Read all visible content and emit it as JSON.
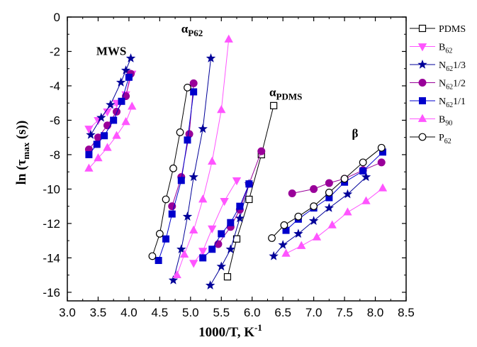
{
  "chart_data": {
    "type": "scatter",
    "xlabel": "1000/T, K",
    "xlabel_sup": "-1",
    "ylabel": "ln (τ",
    "ylabel_sub": "max",
    "ylabel_end": " (s))",
    "xlim": [
      3.0,
      8.5
    ],
    "ylim": [
      -16.5,
      0
    ],
    "xticks": [
      "3.0",
      "3.5",
      "4.0",
      "4.5",
      "5.0",
      "5.5",
      "6.0",
      "6.5",
      "7.0",
      "7.5",
      "8.0",
      "8.5"
    ],
    "yticks": [
      "0",
      "-2",
      "-4",
      "-6",
      "-8",
      "-10",
      "-12",
      "-14",
      "-16"
    ],
    "legend_position": "right",
    "annotations": [
      {
        "base": "MWS",
        "sub": "",
        "x": 3.47,
        "y": -2.2
      },
      {
        "base": "α",
        "sub": "P62",
        "x": 4.85,
        "y": -0.9
      },
      {
        "base": "α",
        "sub": "PDMS",
        "x": 6.28,
        "y": -4.6
      },
      {
        "base": "β",
        "sub": "",
        "x": 7.62,
        "y": -7.0
      }
    ],
    "series": [
      {
        "name": "PDMS",
        "name_sub": "",
        "color": "#000000",
        "marker": "square-open",
        "segments": [
          [
            [
              5.6,
              -15.1
            ],
            [
              5.75,
              -12.9
            ],
            [
              5.95,
              -10.6
            ],
            [
              6.15,
              -8.0
            ],
            [
              6.35,
              -5.15
            ]
          ]
        ]
      },
      {
        "name": "B",
        "name_sub": "62",
        "color": "#ff55ff",
        "marker": "triangle-down",
        "segments": [
          [
            [
              3.35,
              -6.5
            ],
            [
              3.5,
              -6.0
            ],
            [
              3.65,
              -5.5
            ],
            [
              3.8,
              -5.0
            ],
            [
              3.95,
              -4.5
            ],
            [
              4.05,
              -3.3
            ]
          ],
          [
            [
              5.05,
              -14.3
            ],
            [
              5.2,
              -13.6
            ],
            [
              5.35,
              -12.3
            ],
            [
              5.55,
              -10.7
            ],
            [
              5.75,
              -9.5
            ]
          ]
        ]
      },
      {
        "name": "N",
        "name_sub": "62",
        "suffix": "1/3",
        "color": "#000099",
        "marker": "star",
        "segments": [
          [
            [
              3.38,
              -6.85
            ],
            [
              3.55,
              -5.85
            ],
            [
              3.7,
              -5.1
            ],
            [
              3.87,
              -3.8
            ],
            [
              3.95,
              -3.1
            ],
            [
              4.03,
              -2.4
            ]
          ],
          [
            [
              4.72,
              -15.3
            ],
            [
              4.85,
              -13.5
            ],
            [
              4.95,
              -11.6
            ],
            [
              5.05,
              -9.3
            ],
            [
              5.2,
              -6.5
            ],
            [
              5.33,
              -2.4
            ]
          ],
          [
            [
              5.32,
              -15.6
            ],
            [
              5.5,
              -14.5
            ],
            [
              5.65,
              -13.5
            ],
            [
              5.8,
              -11.7
            ],
            [
              5.95,
              -9.7
            ]
          ],
          [
            [
              6.35,
              -13.9
            ],
            [
              6.5,
              -13.25
            ],
            [
              6.75,
              -12.6
            ],
            [
              7.0,
              -11.85
            ],
            [
              7.25,
              -11.1
            ],
            [
              7.55,
              -10.3
            ],
            [
              7.85,
              -9.3
            ]
          ]
        ]
      },
      {
        "name": "N",
        "name_sub": "62",
        "suffix": "1/2",
        "color": "#990099",
        "marker": "circle-filled",
        "segments": [
          [
            [
              3.35,
              -7.7
            ],
            [
              3.5,
              -7.0
            ],
            [
              3.65,
              -6.3
            ],
            [
              3.8,
              -5.5
            ],
            [
              3.95,
              -4.6
            ],
            [
              4.03,
              -3.3
            ]
          ],
          [
            [
              4.7,
              -11.0
            ],
            [
              4.85,
              -9.3
            ],
            [
              4.98,
              -6.8
            ],
            [
              5.05,
              -3.85
            ]
          ],
          [
            [
              5.45,
              -13.2
            ],
            [
              5.65,
              -12.2
            ],
            [
              5.8,
              -11.2
            ],
            [
              5.95,
              -9.7
            ],
            [
              6.15,
              -7.8
            ]
          ],
          [
            [
              6.65,
              -10.25
            ],
            [
              7.0,
              -10.0
            ],
            [
              7.25,
              -9.65
            ],
            [
              7.5,
              -9.4
            ],
            [
              7.8,
              -8.9
            ],
            [
              8.1,
              -8.45
            ]
          ]
        ]
      },
      {
        "name": "N",
        "name_sub": "62",
        "suffix": "1/1",
        "color": "#0000cc",
        "marker": "square-filled",
        "segments": [
          [
            [
              3.35,
              -8.0
            ],
            [
              3.48,
              -7.4
            ],
            [
              3.6,
              -6.9
            ],
            [
              3.75,
              -6.0
            ],
            [
              3.88,
              -4.9
            ],
            [
              4.0,
              -3.5
            ]
          ],
          [
            [
              4.48,
              -14.15
            ],
            [
              4.6,
              -12.9
            ],
            [
              4.7,
              -11.45
            ],
            [
              4.85,
              -9.5
            ],
            [
              4.95,
              -7.15
            ],
            [
              5.05,
              -4.35
            ]
          ],
          [
            [
              5.2,
              -14.0
            ],
            [
              5.35,
              -13.5
            ],
            [
              5.5,
              -12.6
            ],
            [
              5.65,
              -11.95
            ],
            [
              5.8,
              -11.0
            ],
            [
              5.95,
              -9.7
            ]
          ],
          [
            [
              6.55,
              -12.4
            ],
            [
              6.75,
              -11.75
            ],
            [
              7.0,
              -11.1
            ],
            [
              7.25,
              -10.5
            ],
            [
              7.5,
              -9.6
            ],
            [
              7.8,
              -8.95
            ],
            [
              8.12,
              -7.85
            ]
          ]
        ]
      },
      {
        "name": "B",
        "name_sub": "90",
        "color": "#ff55ff",
        "marker": "triangle-up",
        "segments": [
          [
            [
              3.35,
              -8.8
            ],
            [
              3.5,
              -8.2
            ],
            [
              3.65,
              -7.6
            ],
            [
              3.8,
              -6.9
            ],
            [
              3.95,
              -6.1
            ],
            [
              4.05,
              -5.2
            ]
          ],
          [
            [
              4.78,
              -15.0
            ],
            [
              4.9,
              -13.8
            ],
            [
              5.05,
              -12.4
            ],
            [
              5.2,
              -10.6
            ],
            [
              5.35,
              -8.4
            ],
            [
              5.5,
              -5.4
            ],
            [
              5.62,
              -1.3
            ]
          ],
          [
            [
              6.55,
              -13.75
            ],
            [
              6.8,
              -13.3
            ],
            [
              7.05,
              -12.8
            ],
            [
              7.3,
              -12.1
            ],
            [
              7.55,
              -11.35
            ],
            [
              7.85,
              -10.7
            ],
            [
              8.12,
              -9.95
            ]
          ]
        ]
      },
      {
        "name": "P",
        "name_sub": "62",
        "color": "#000000",
        "marker": "circle-open",
        "segments": [
          [
            [
              4.38,
              -13.9
            ],
            [
              4.5,
              -12.6
            ],
            [
              4.6,
              -10.6
            ],
            [
              4.72,
              -8.8
            ],
            [
              4.83,
              -6.7
            ],
            [
              4.95,
              -4.1
            ]
          ],
          [
            [
              6.32,
              -12.85
            ],
            [
              6.52,
              -12.1
            ],
            [
              6.75,
              -11.6
            ],
            [
              7.0,
              -11.0
            ],
            [
              7.25,
              -10.2
            ],
            [
              7.5,
              -9.4
            ],
            [
              7.8,
              -8.45
            ],
            [
              8.1,
              -7.6
            ]
          ]
        ]
      }
    ]
  }
}
